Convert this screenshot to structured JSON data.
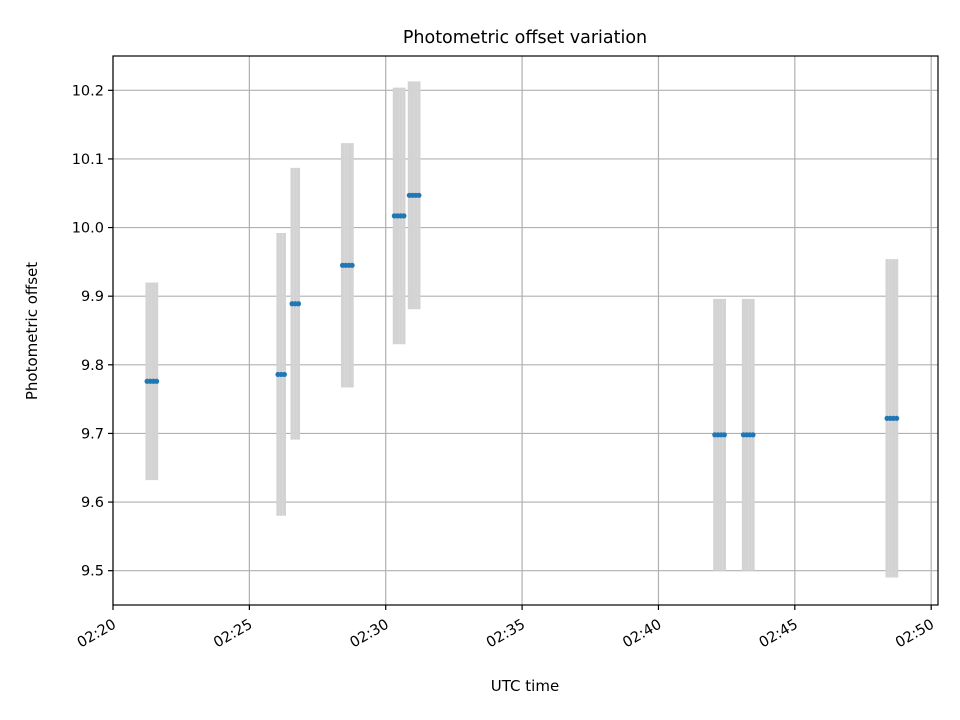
{
  "chart_data": {
    "type": "scatter",
    "title": "Photometric offset variation",
    "xlabel": "UTC time",
    "ylabel": "Photometric offset",
    "x_unit": "minutes",
    "xlim": [
      "02:20",
      "02:50:15"
    ],
    "ylim": [
      9.45,
      10.25
    ],
    "x_ticks": [
      "02:20",
      "02:25",
      "02:30",
      "02:35",
      "02:40",
      "02:45",
      "02:50"
    ],
    "y_ticks": [
      9.5,
      9.6,
      9.7,
      9.8,
      9.9,
      10.0,
      10.1,
      10.2
    ],
    "grid": true,
    "marker_color": "#1f77b4",
    "errorbar_color": "#d3d3d3",
    "points": [
      {
        "x": "02:21:15",
        "y": 9.776,
        "yerr": 0.144
      },
      {
        "x": "02:21:22",
        "y": 9.776,
        "yerr": 0.144
      },
      {
        "x": "02:21:29",
        "y": 9.776,
        "yerr": 0.144
      },
      {
        "x": "02:21:36",
        "y": 9.776,
        "yerr": 0.144
      },
      {
        "x": "02:26:03",
        "y": 9.786,
        "yerr": 0.206
      },
      {
        "x": "02:26:10",
        "y": 9.786,
        "yerr": 0.206
      },
      {
        "x": "02:26:17",
        "y": 9.786,
        "yerr": 0.206
      },
      {
        "x": "02:26:34",
        "y": 9.889,
        "yerr": 0.198
      },
      {
        "x": "02:26:41",
        "y": 9.889,
        "yerr": 0.198
      },
      {
        "x": "02:26:48",
        "y": 9.889,
        "yerr": 0.198
      },
      {
        "x": "02:28:25",
        "y": 9.945,
        "yerr": 0.178
      },
      {
        "x": "02:28:32",
        "y": 9.945,
        "yerr": 0.178
      },
      {
        "x": "02:28:39",
        "y": 9.945,
        "yerr": 0.178
      },
      {
        "x": "02:28:46",
        "y": 9.945,
        "yerr": 0.178
      },
      {
        "x": "02:30:19",
        "y": 10.017,
        "yerr": 0.187
      },
      {
        "x": "02:30:26",
        "y": 10.017,
        "yerr": 0.187
      },
      {
        "x": "02:30:33",
        "y": 10.017,
        "yerr": 0.187
      },
      {
        "x": "02:30:40",
        "y": 10.017,
        "yerr": 0.187
      },
      {
        "x": "02:30:52",
        "y": 10.047,
        "yerr": 0.166
      },
      {
        "x": "02:30:59",
        "y": 10.047,
        "yerr": 0.166
      },
      {
        "x": "02:31:06",
        "y": 10.047,
        "yerr": 0.166
      },
      {
        "x": "02:31:13",
        "y": 10.047,
        "yerr": 0.166
      },
      {
        "x": "02:42:04",
        "y": 9.698,
        "yerr": 0.198
      },
      {
        "x": "02:42:11",
        "y": 9.698,
        "yerr": 0.198
      },
      {
        "x": "02:42:18",
        "y": 9.698,
        "yerr": 0.198
      },
      {
        "x": "02:42:25",
        "y": 9.698,
        "yerr": 0.198
      },
      {
        "x": "02:43:07",
        "y": 9.698,
        "yerr": 0.198
      },
      {
        "x": "02:43:14",
        "y": 9.698,
        "yerr": 0.198
      },
      {
        "x": "02:43:21",
        "y": 9.698,
        "yerr": 0.198
      },
      {
        "x": "02:43:28",
        "y": 9.698,
        "yerr": 0.198
      },
      {
        "x": "02:48:23",
        "y": 9.722,
        "yerr": 0.232
      },
      {
        "x": "02:48:30",
        "y": 9.722,
        "yerr": 0.232
      },
      {
        "x": "02:48:37",
        "y": 9.722,
        "yerr": 0.232
      },
      {
        "x": "02:48:44",
        "y": 9.722,
        "yerr": 0.232
      }
    ]
  }
}
